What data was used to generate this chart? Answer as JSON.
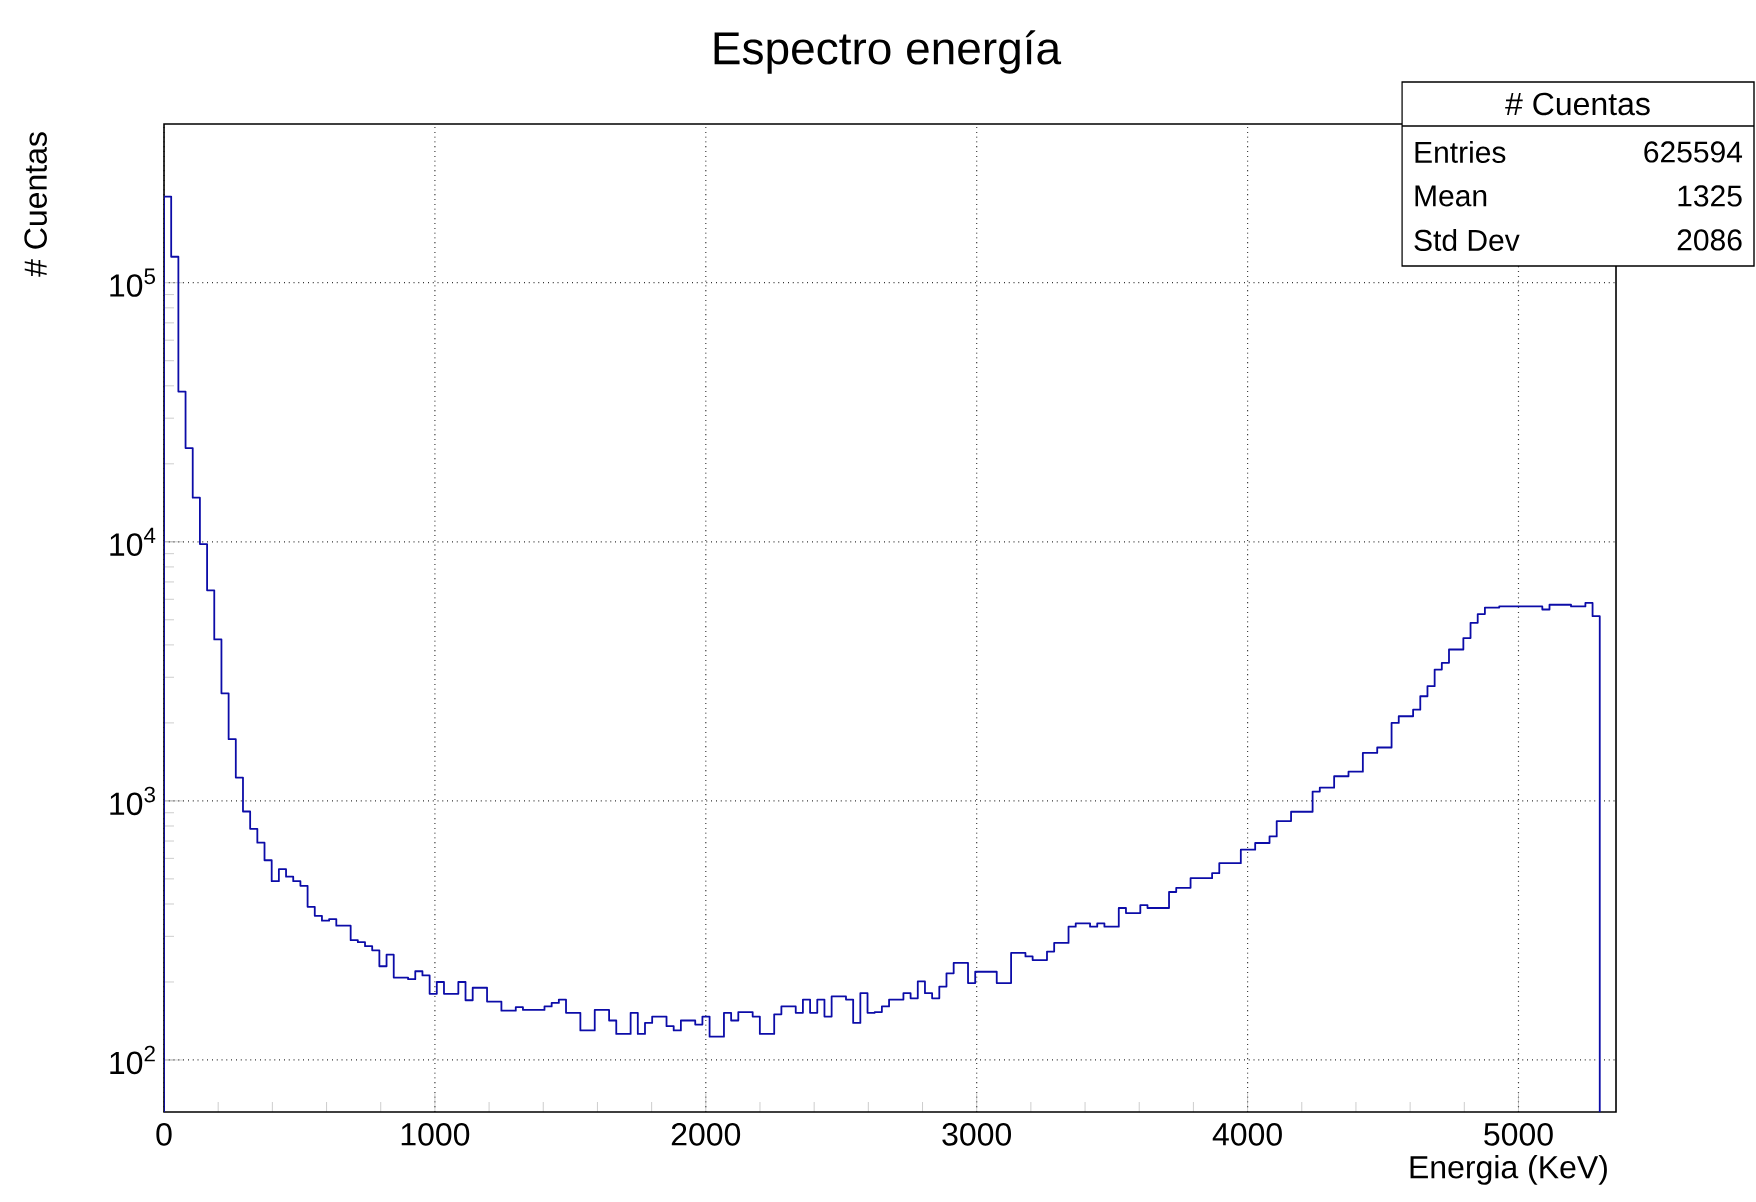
{
  "chart_data": {
    "type": "histogram",
    "title": "Espectro energía",
    "xlabel": "Energia (KeV)",
    "ylabel": "# Cuentas",
    "bins": [
      0,
      26.5,
      53,
      79.5,
      106,
      132.5,
      159,
      185.5,
      212,
      238.5,
      265,
      291.5,
      318,
      344.5,
      371,
      397.5,
      424,
      450.5,
      477,
      503.5,
      530,
      556.5,
      583,
      609.5,
      636,
      662.5,
      689,
      715.5,
      742,
      768.5,
      795,
      821.5,
      848,
      874.5,
      901,
      927.5,
      954,
      980.5,
      1007,
      1033.5,
      1060,
      1086.5,
      1113,
      1139.5,
      1166,
      1192.5,
      1219,
      1245.5,
      1272,
      1298.5,
      1325,
      1351.5,
      1378,
      1404.5,
      1431,
      1457.5,
      1484,
      1510.5,
      1537,
      1563.5,
      1590,
      1616.5,
      1643,
      1669.5,
      1696,
      1722.5,
      1749,
      1775.5,
      1802,
      1828.5,
      1855,
      1881.5,
      1908,
      1934.5,
      1961,
      1987.5,
      2014,
      2040.5,
      2067,
      2093.5,
      2120,
      2146.5,
      2173,
      2199.5,
      2226,
      2252.5,
      2279,
      2305.5,
      2332,
      2358.5,
      2385,
      2411.5,
      2438,
      2464.5,
      2491,
      2517.5,
      2544,
      2570.5,
      2597,
      2623.5,
      2650,
      2676.5,
      2703,
      2729.5,
      2756,
      2782.5,
      2809,
      2835.5,
      2862,
      2888.5,
      2915,
      2941.5,
      2968,
      2994.5,
      3021,
      3047.5,
      3074,
      3100.5,
      3127,
      3153.5,
      3180,
      3206.5,
      3233,
      3259.5,
      3286,
      3312.5,
      3339,
      3365.5,
      3392,
      3418.5,
      3445,
      3471.5,
      3498,
      3524.5,
      3551,
      3577.5,
      3604,
      3630.5,
      3657,
      3683.5,
      3710,
      3736.5,
      3763,
      3789.5,
      3816,
      3842.5,
      3869,
      3895.5,
      3922,
      3948.5,
      3975,
      4001.5,
      4028,
      4054.5,
      4081,
      4107.5,
      4134,
      4160.5,
      4187,
      4213.5,
      4240,
      4266.5,
      4293,
      4319.5,
      4346,
      4372.5,
      4399,
      4425.5,
      4452,
      4478.5,
      4505,
      4531.5,
      4558,
      4584.5,
      4611,
      4637.5,
      4664,
      4690.5,
      4717,
      4743.5,
      4770,
      4796.5,
      4823,
      4849.5,
      4876,
      4902.5,
      4929,
      4955.5,
      4982,
      5008.5,
      5035,
      5061.5,
      5088,
      5114.5,
      5141,
      5167.5,
      5194,
      5220.5,
      5247,
      5273.5,
      5300
    ],
    "values": [
      215000,
      126000,
      38000,
      23000,
      14800,
      9800,
      6500,
      4200,
      2600,
      1730,
      1230,
      910,
      780,
      690,
      590,
      490,
      545,
      510,
      490,
      470,
      390,
      360,
      345,
      350,
      330,
      330,
      290,
      285,
      275,
      265,
      230,
      255,
      208,
      208,
      205,
      220,
      212,
      180,
      200,
      180,
      180,
      200,
      170,
      190,
      190,
      168,
      168,
      155,
      155,
      160,
      156,
      156,
      156,
      161,
      166,
      171,
      152,
      152,
      130,
      130,
      156,
      156,
      142,
      126,
      126,
      152,
      126,
      139,
      147,
      147,
      135,
      130,
      142,
      142,
      137,
      147,
      123,
      123,
      152,
      142,
      153,
      153,
      147,
      126,
      126,
      150,
      161,
      161,
      152,
      171,
      152,
      171,
      147,
      176,
      176,
      171,
      139,
      181,
      152,
      153,
      161,
      171,
      171,
      181,
      173,
      201,
      181,
      173,
      192,
      216,
      237,
      237,
      198,
      219,
      219,
      219,
      198,
      198,
      259,
      259,
      251,
      243,
      243,
      262,
      283,
      283,
      327,
      337,
      337,
      327,
      337,
      327,
      327,
      386,
      369,
      369,
      396,
      386,
      386,
      386,
      445,
      462,
      462,
      503,
      503,
      503,
      526,
      575,
      575,
      575,
      648,
      648,
      688,
      688,
      729,
      836,
      836,
      908,
      908,
      908,
      1086,
      1125,
      1125,
      1245,
      1245,
      1297,
      1297,
      1532,
      1532,
      1607,
      1607,
      2000,
      2122,
      2122,
      2250,
      2535,
      2773,
      3214,
      3411,
      3840,
      3840,
      4250,
      4868,
      5260,
      5575,
      5575,
      5630,
      5630,
      5630,
      5630,
      5630,
      5630,
      5480,
      5715,
      5715,
      5715,
      5630,
      5630,
      5810,
      5165
    ],
    "color": "#0c0ca8",
    "xlim": [
      0,
      5360
    ],
    "ylim": [
      63,
      410000
    ],
    "log": "y",
    "xticks": [
      0,
      1000,
      2000,
      3000,
      4000,
      5000
    ],
    "yticks": [
      {
        "value": 100,
        "label": "10$^{2}$"
      },
      {
        "value": 1000,
        "label": "10$^{3}$"
      },
      {
        "value": 10000,
        "label": "10$^{4}$"
      },
      {
        "value": 100000,
        "label": "10$^{5}$"
      }
    ],
    "grid": true,
    "annotations": [
      "# Cuentas",
      "Entries",
      "625594",
      "Mean",
      "1325",
      "Std Dev",
      "2086"
    ]
  }
}
